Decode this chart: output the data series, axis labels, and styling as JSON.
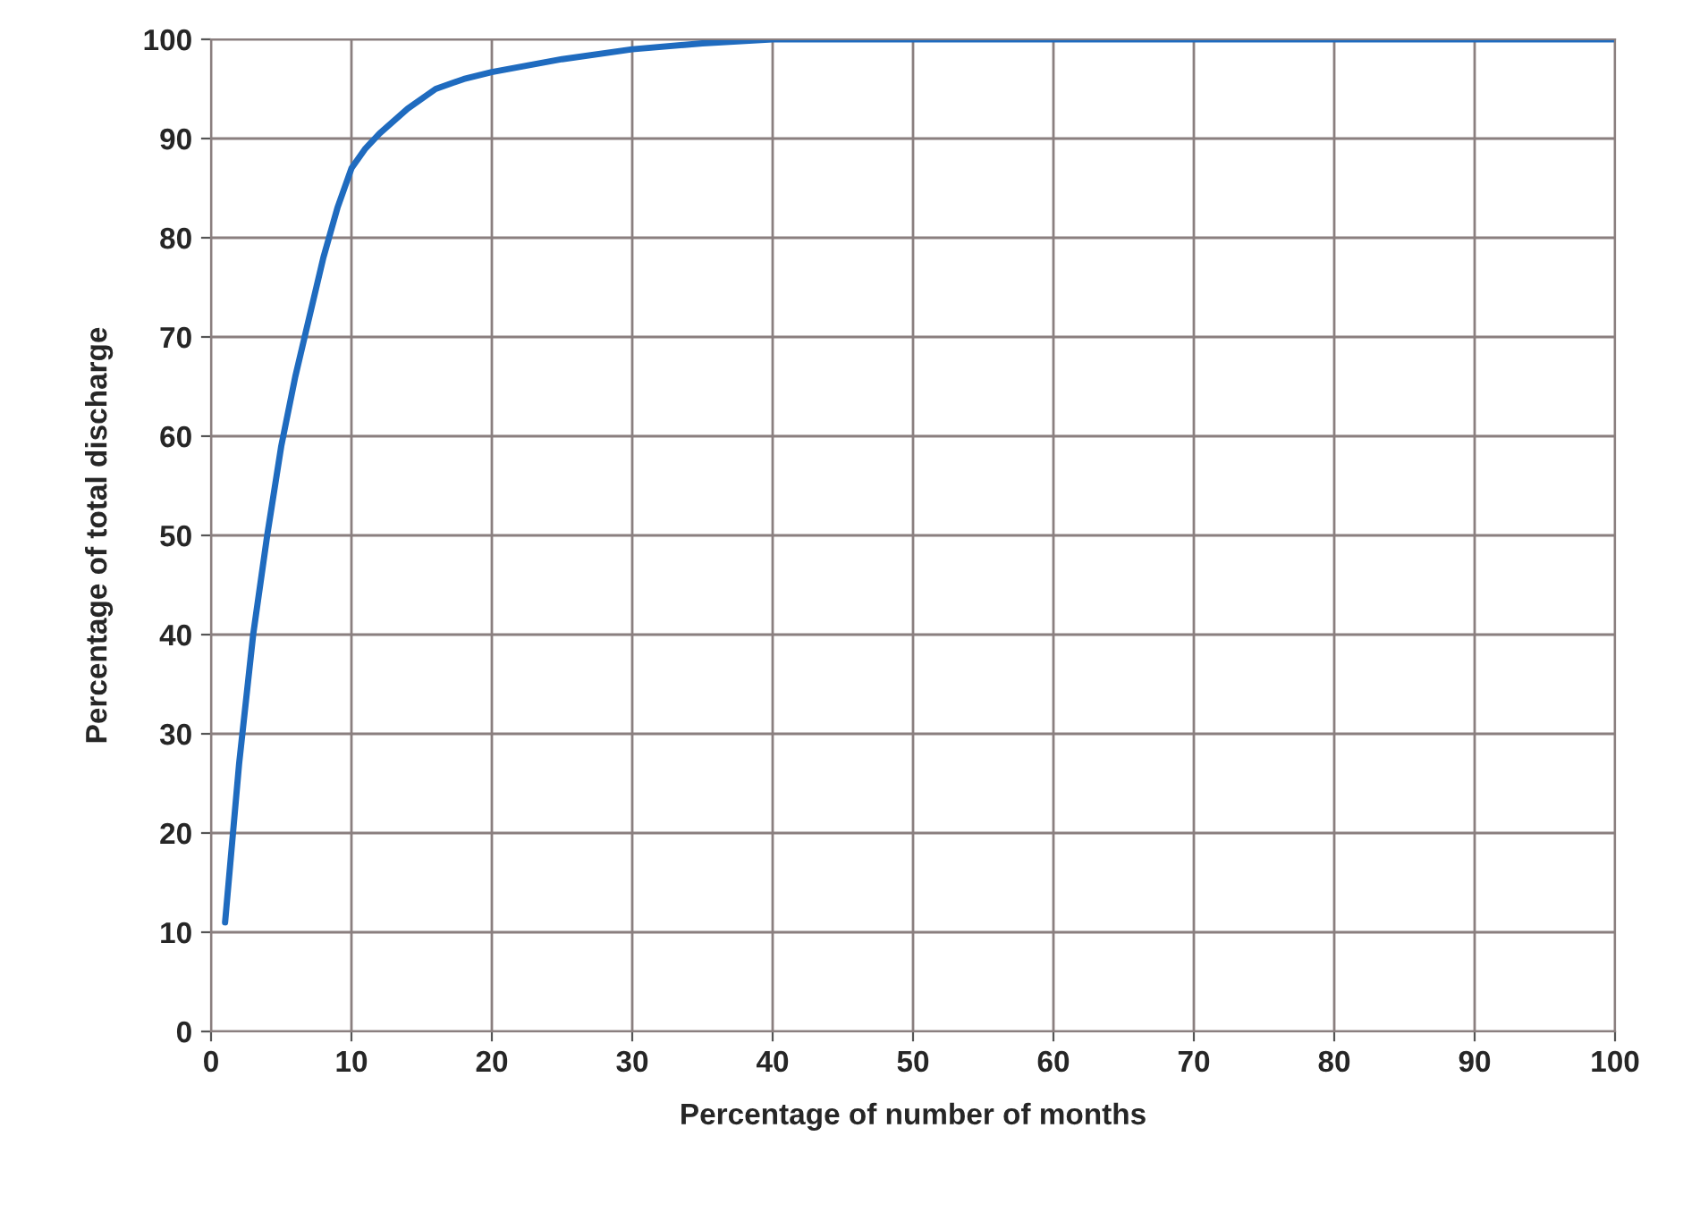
{
  "chart_data": {
    "type": "line",
    "xlabel": "Percentage of number of months",
    "ylabel": "Percentage of total discharge",
    "series": [
      {
        "color": "#1f6bbf",
        "x": [
          1,
          2,
          3,
          4,
          5,
          6,
          7,
          8,
          9,
          10,
          11,
          12,
          14,
          16,
          18,
          20,
          25,
          30,
          35,
          40,
          50,
          60,
          70,
          80,
          90,
          100
        ],
        "values": [
          11,
          27,
          40,
          50,
          59,
          66,
          72,
          78,
          83,
          87,
          89,
          90.5,
          93,
          95,
          96,
          96.7,
          98,
          99,
          99.6,
          100,
          100,
          100,
          100,
          100,
          100,
          100
        ]
      }
    ],
    "xlim": [
      0,
      100
    ],
    "ylim": [
      0,
      100
    ],
    "xticks": [
      0,
      10,
      20,
      30,
      40,
      50,
      60,
      70,
      80,
      90,
      100
    ],
    "yticks": [
      0,
      10,
      20,
      30,
      40,
      50,
      60,
      70,
      80,
      90,
      100
    ],
    "grid": true,
    "marker": "none",
    "line_style": "solid"
  }
}
